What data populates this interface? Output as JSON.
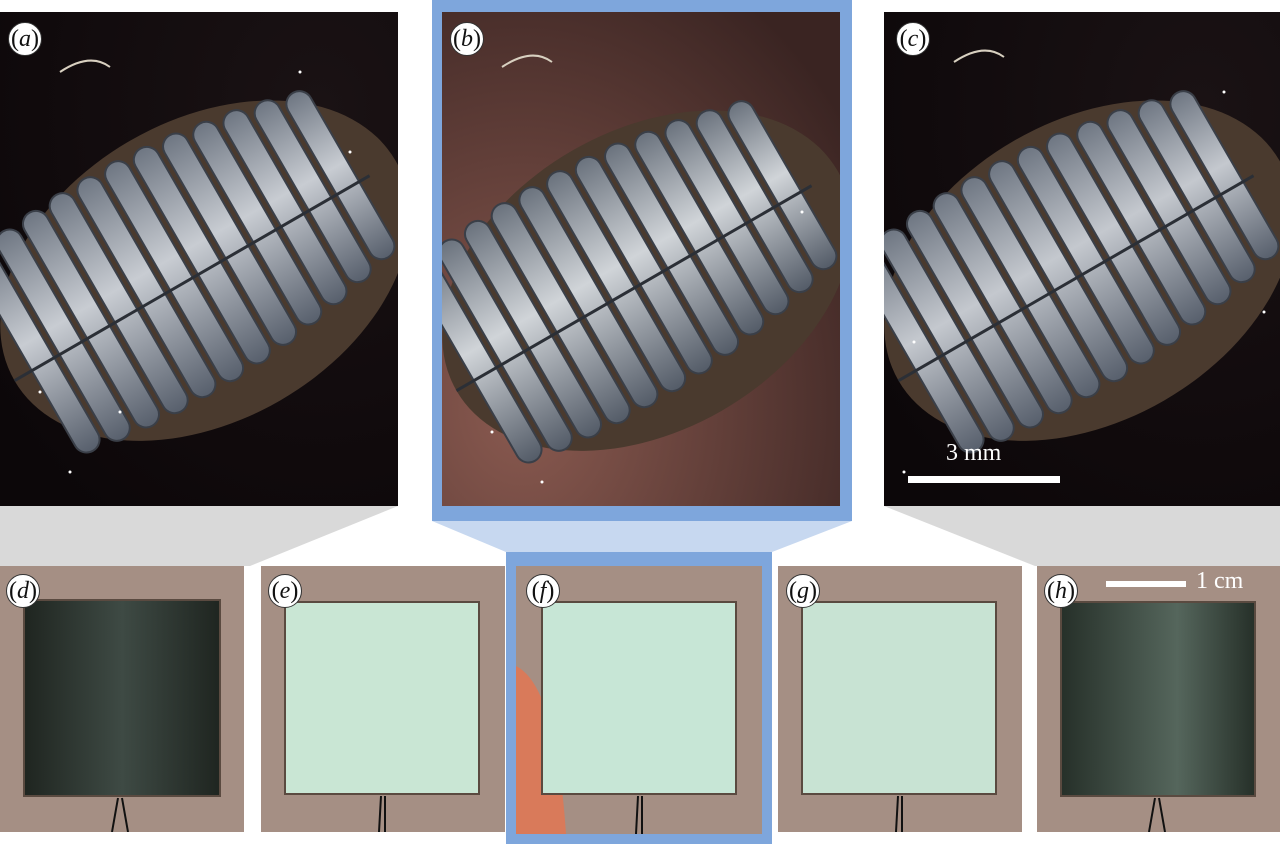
{
  "panels": {
    "a": {
      "label": "a"
    },
    "b": {
      "label": "b"
    },
    "c": {
      "label": "c"
    },
    "d": {
      "label": "d"
    },
    "e": {
      "label": "e"
    },
    "f": {
      "label": "f"
    },
    "g": {
      "label": "g"
    },
    "h": {
      "label": "h"
    }
  },
  "scale_bars": {
    "top": "3 mm",
    "bottom": "1 cm"
  },
  "colors": {
    "highlight_frame": "#7ea6dc",
    "zoom_trapezoid_gray": "#d9d9d9",
    "zoom_trapezoid_blue": "#c7d8f0"
  }
}
